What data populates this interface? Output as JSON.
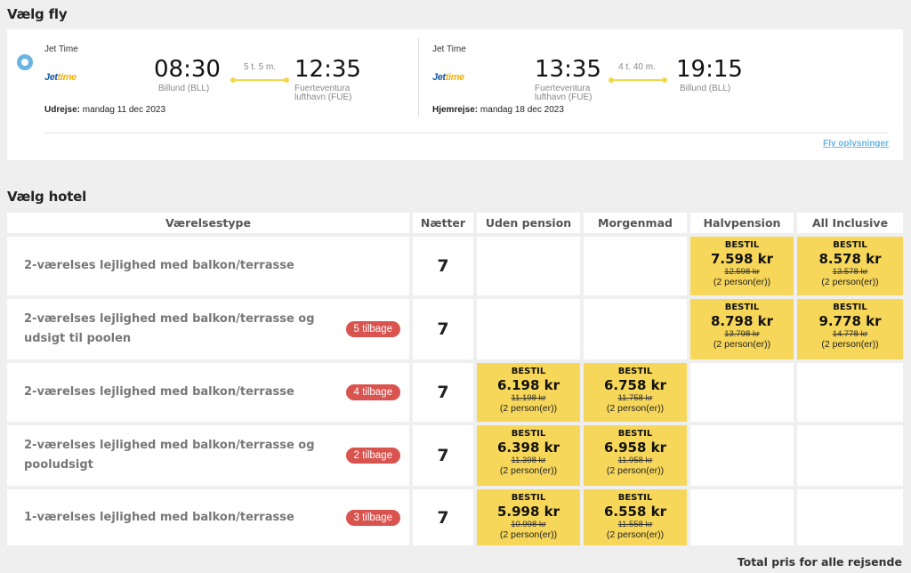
{
  "sections": {
    "flights_title": "Vælg fly",
    "hotel_title": "Vælg hotel"
  },
  "flights": {
    "outbound": {
      "airline": "Jet Time",
      "logo_main": "Jet",
      "logo_sub": "time",
      "depart_time": "08:30",
      "depart_place": "Billund (BLL)",
      "duration": "5 t. 5 m.",
      "arrive_time": "12:35",
      "arrive_place_1": "Fuerteventura",
      "arrive_place_2": "lufthavn (FUE)",
      "date_label": "Udrejse:",
      "date_value": "mandag 11 dec 2023"
    },
    "return": {
      "airline": "Jet Time",
      "logo_main": "Jet",
      "logo_sub": "time",
      "depart_time": "13:35",
      "depart_place_1": "Fuerteventura",
      "depart_place_2": "lufthavn (FUE)",
      "duration": "4 t. 40 m.",
      "arrive_time": "19:15",
      "arrive_place": "Billund (BLL)",
      "date_label": "Hjemrejse:",
      "date_value": "mandag 18 dec 2023"
    },
    "info_link": "Fly oplysninger"
  },
  "hotel_table": {
    "headers": {
      "room_type": "Værelsestype",
      "nights": "Nætter",
      "no_board": "Uden pension",
      "breakfast": "Morgenmad",
      "half_board": "Halvpension",
      "all_inclusive": "All Inclusive"
    },
    "rows": [
      {
        "name": "2-værelses lejlighed med balkon/terrasse",
        "badge": "",
        "nights": "7",
        "no_board": null,
        "breakfast": null,
        "half_board": {
          "label": "BESTIL",
          "price": "7.598 kr",
          "old": "12.598 kr",
          "persons": "(2 person(er))"
        },
        "all_inclusive": {
          "label": "BESTIL",
          "price": "8.578 kr",
          "old": "13.578 kr",
          "persons": "(2 person(er))"
        }
      },
      {
        "name": "2-værelses lejlighed med balkon/terrasse og udsigt til poolen",
        "badge": "5 tilbage",
        "nights": "7",
        "no_board": null,
        "breakfast": null,
        "half_board": {
          "label": "BESTIL",
          "price": "8.798 kr",
          "old": "13.798 kr",
          "persons": "(2 person(er))"
        },
        "all_inclusive": {
          "label": "BESTIL",
          "price": "9.778 kr",
          "old": "14.778 kr",
          "persons": "(2 person(er))"
        }
      },
      {
        "name": "2-værelses lejlighed med balkon/terrasse",
        "badge": "4 tilbage",
        "nights": "7",
        "no_board": {
          "label": "BESTIL",
          "price": "6.198 kr",
          "old": "11.198 kr",
          "persons": "(2 person(er))"
        },
        "breakfast": {
          "label": "BESTIL",
          "price": "6.758 kr",
          "old": "11.758 kr",
          "persons": "(2 person(er))"
        },
        "half_board": null,
        "all_inclusive": null
      },
      {
        "name": "2-værelses lejlighed med balkon/terrasse og pooludsigt",
        "badge": "2 tilbage",
        "nights": "7",
        "no_board": {
          "label": "BESTIL",
          "price": "6.398 kr",
          "old": "11.398 kr",
          "persons": "(2 person(er))"
        },
        "breakfast": {
          "label": "BESTIL",
          "price": "6.958 kr",
          "old": "11.958 kr",
          "persons": "(2 person(er))"
        },
        "half_board": null,
        "all_inclusive": null
      },
      {
        "name": "1-værelses lejlighed med balkon/terrasse",
        "badge": "3 tilbage",
        "nights": "7",
        "no_board": {
          "label": "BESTIL",
          "price": "5.998 kr",
          "old": "10.998 kr",
          "persons": "(2 person(er))"
        },
        "breakfast": {
          "label": "BESTIL",
          "price": "6.558 kr",
          "old": "11.558 kr",
          "persons": "(2 person(er))"
        },
        "half_board": null,
        "all_inclusive": null
      }
    ],
    "total_label": "Total pris for alle rejsende"
  }
}
